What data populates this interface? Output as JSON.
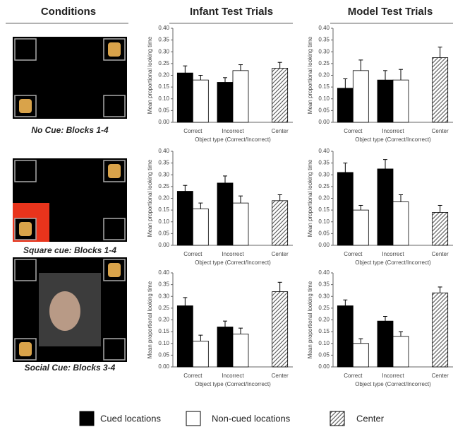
{
  "columns": [
    "Conditions",
    "Infant Test Trials",
    "Model Test Trials"
  ],
  "conditions": [
    "No Cue: Blocks 1-4",
    "Square cue: Blocks 1-4",
    "Social Cue: Blocks 3-4"
  ],
  "legend": [
    {
      "name": "Cued locations",
      "color": "#000000"
    },
    {
      "name": "Non-cued locations",
      "color": "#ffffff"
    },
    {
      "name": "Center",
      "color": "#555555",
      "hatch": true
    }
  ],
  "chart_data": [
    {
      "type": "bar",
      "ylabel": "Mean proportional looking time",
      "xlabel": "Object type (Correct/Incorrect)",
      "categories": [
        "Correct",
        "Incorrect",
        "Center"
      ],
      "series": [
        {
          "values": [
            0.21,
            0.17,
            null
          ],
          "errors": [
            0.03,
            0.02,
            null
          ]
        },
        {
          "values": [
            0.18,
            0.22,
            null
          ],
          "errors": [
            0.02,
            0.025,
            null
          ]
        },
        {
          "values": [
            null,
            null,
            0.23
          ],
          "errors": [
            null,
            null,
            0.025
          ]
        }
      ],
      "ylim": [
        0,
        0.4
      ],
      "yticks": [
        {
          "value": 0,
          "label": "0.00"
        },
        {
          "value": 0.05,
          "label": "0.05"
        },
        {
          "value": 0.1,
          "label": "0.10"
        },
        {
          "value": 0.15,
          "label": "0.15"
        },
        {
          "value": 0.2,
          "label": "0.20"
        },
        {
          "value": 0.25,
          "label": "0.25"
        },
        {
          "value": 0.3,
          "label": "0.30"
        },
        {
          "value": 0.35,
          "label": "0.35"
        },
        {
          "value": 0.4,
          "label": "0.40"
        }
      ]
    },
    {
      "type": "bar",
      "ylabel": "Mean proportional looking time",
      "xlabel": "Object type (Correct/Incorrect)",
      "categories": [
        "Correct",
        "Incorrect",
        "Center"
      ],
      "series": [
        {
          "values": [
            0.145,
            0.18,
            null
          ],
          "errors": [
            0.04,
            0.04,
            null
          ]
        },
        {
          "values": [
            0.22,
            0.18,
            null
          ],
          "errors": [
            0.045,
            0.045,
            null
          ]
        },
        {
          "values": [
            null,
            null,
            0.275
          ],
          "errors": [
            null,
            null,
            0.045
          ]
        }
      ],
      "ylim": [
        0,
        0.4
      ],
      "yticks": [
        {
          "value": 0,
          "label": "0.00"
        },
        {
          "value": 0.05,
          "label": "0.05"
        },
        {
          "value": 0.1,
          "label": "0.10"
        },
        {
          "value": 0.15,
          "label": "0.15"
        },
        {
          "value": 0.2,
          "label": "0.20"
        },
        {
          "value": 0.25,
          "label": "0.25"
        },
        {
          "value": 0.3,
          "label": "0.30"
        },
        {
          "value": 0.35,
          "label": "0.35"
        },
        {
          "value": 0.4,
          "label": "0.40"
        }
      ]
    },
    {
      "type": "bar",
      "ylabel": "Mean proportional looking time",
      "xlabel": "Object type (Correct/Incorrect)",
      "categories": [
        "Correct",
        "Incorrect",
        "Center"
      ],
      "series": [
        {
          "values": [
            0.23,
            0.265,
            null
          ],
          "errors": [
            0.025,
            0.03,
            null
          ]
        },
        {
          "values": [
            0.155,
            0.18,
            null
          ],
          "errors": [
            0.025,
            0.03,
            null
          ]
        },
        {
          "values": [
            null,
            null,
            0.19
          ],
          "errors": [
            null,
            null,
            0.025
          ]
        }
      ],
      "ylim": [
        0,
        0.4
      ],
      "yticks": [
        {
          "value": 0,
          "label": "0.00"
        },
        {
          "value": 0.05,
          "label": "0.05"
        },
        {
          "value": 0.1,
          "label": "0.10"
        },
        {
          "value": 0.15,
          "label": "0.15"
        },
        {
          "value": 0.2,
          "label": "0.20"
        },
        {
          "value": 0.25,
          "label": "0.25"
        },
        {
          "value": 0.3,
          "label": "0.30"
        },
        {
          "value": 0.35,
          "label": "0.35"
        },
        {
          "value": 0.4,
          "label": "0.40"
        }
      ]
    },
    {
      "type": "bar",
      "ylabel": "Mean proportional looking time",
      "xlabel": "Object type (Correct/Incorrect)",
      "categories": [
        "Correct",
        "Incorrect",
        "Center"
      ],
      "series": [
        {
          "values": [
            0.31,
            0.325,
            null
          ],
          "errors": [
            0.04,
            0.04,
            null
          ]
        },
        {
          "values": [
            0.15,
            0.185,
            null
          ],
          "errors": [
            0.02,
            0.03,
            null
          ]
        },
        {
          "values": [
            null,
            null,
            0.14
          ],
          "errors": [
            null,
            null,
            0.03
          ]
        }
      ],
      "ylim": [
        0,
        0.4
      ],
      "yticks": [
        {
          "value": 0,
          "label": "0.00"
        },
        {
          "value": 0.05,
          "label": "0.05"
        },
        {
          "value": 0.1,
          "label": "0.10"
        },
        {
          "value": 0.15,
          "label": "0.15"
        },
        {
          "value": 0.2,
          "label": "0.20"
        },
        {
          "value": 0.25,
          "label": "0.25"
        },
        {
          "value": 0.3,
          "label": "0.30"
        },
        {
          "value": 0.35,
          "label": "0.35"
        },
        {
          "value": 0.4,
          "label": "0.40"
        }
      ]
    },
    {
      "type": "bar",
      "ylabel": "Mean proportional looking time",
      "xlabel": "Object type (Correct/Incorrect)",
      "categories": [
        "Correct",
        "Incorrect",
        "Center"
      ],
      "series": [
        {
          "values": [
            0.26,
            0.17,
            null
          ],
          "errors": [
            0.035,
            0.025,
            null
          ]
        },
        {
          "values": [
            0.11,
            0.14,
            null
          ],
          "errors": [
            0.025,
            0.025,
            null
          ]
        },
        {
          "values": [
            null,
            null,
            0.32
          ],
          "errors": [
            null,
            null,
            0.04
          ]
        }
      ],
      "ylim": [
        0,
        0.4
      ],
      "yticks": [
        {
          "value": 0,
          "label": "0.00"
        },
        {
          "value": 0.05,
          "label": "0.05"
        },
        {
          "value": 0.1,
          "label": "0.10"
        },
        {
          "value": 0.15,
          "label": "0.15"
        },
        {
          "value": 0.2,
          "label": "0.20"
        },
        {
          "value": 0.25,
          "label": "0.25"
        },
        {
          "value": 0.3,
          "label": "0.30"
        },
        {
          "value": 0.35,
          "label": "0.35"
        },
        {
          "value": 0.4,
          "label": "0.40"
        }
      ]
    },
    {
      "type": "bar",
      "ylabel": "Mean proportional looking time",
      "xlabel": "Object type (Correct/Incorrect)",
      "categories": [
        "Correct",
        "Incorrect",
        "Center"
      ],
      "series": [
        {
          "values": [
            0.26,
            0.195,
            null
          ],
          "errors": [
            0.025,
            0.02,
            null
          ]
        },
        {
          "values": [
            0.1,
            0.13,
            null
          ],
          "errors": [
            0.02,
            0.02,
            null
          ]
        },
        {
          "values": [
            null,
            null,
            0.315
          ],
          "errors": [
            null,
            null,
            0.025
          ]
        }
      ],
      "ylim": [
        0,
        0.4
      ],
      "yticks": [
        {
          "value": 0,
          "label": "0.00"
        },
        {
          "value": 0.05,
          "label": "0.05"
        },
        {
          "value": 0.1,
          "label": "0.10"
        },
        {
          "value": 0.15,
          "label": "0.15"
        },
        {
          "value": 0.2,
          "label": "0.20"
        },
        {
          "value": 0.25,
          "label": "0.25"
        },
        {
          "value": 0.3,
          "label": "0.30"
        },
        {
          "value": 0.35,
          "label": "0.35"
        },
        {
          "value": 0.4,
          "label": "0.40"
        }
      ]
    }
  ]
}
